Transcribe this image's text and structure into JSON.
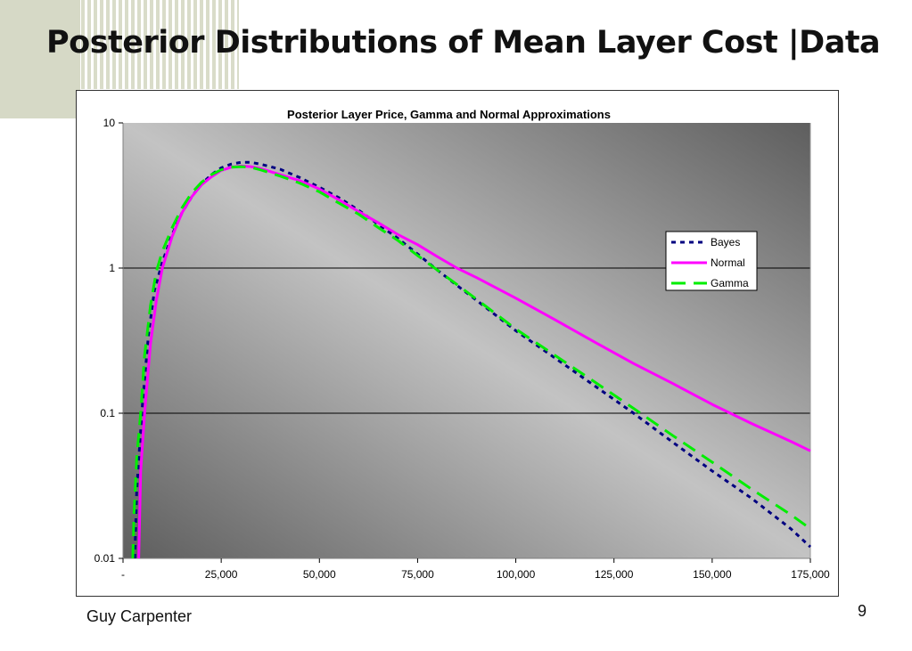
{
  "slide": {
    "title": "Posterior Distributions of Mean Layer Cost |Data",
    "footer": "Guy Carpenter",
    "page_number": "9"
  },
  "chart_data": {
    "type": "line",
    "title": "Posterior Layer Price, Gamma and Normal Approximations",
    "xlabel": "",
    "ylabel": "",
    "x_scale": "linear",
    "y_scale": "log",
    "xlim": [
      0,
      175000
    ],
    "ylim": [
      0.01,
      10
    ],
    "x_ticks": [
      0,
      25000,
      50000,
      75000,
      100000,
      125000,
      150000,
      175000
    ],
    "x_tick_labels": [
      "-",
      "25,000",
      "50,000",
      "75,000",
      "100,000",
      "125,000",
      "150,000",
      "175,000"
    ],
    "y_ticks": [
      0.01,
      0.1,
      1,
      10
    ],
    "y_tick_labels": [
      "0.01",
      "0.1",
      "1",
      "10"
    ],
    "grid": "horizontal major",
    "legend_position": "right",
    "series": [
      {
        "name": "Bayes",
        "color": "#000080",
        "style": "dotted",
        "points": [
          [
            3000,
            0.01
          ],
          [
            3500,
            0.03
          ],
          [
            5000,
            0.12
          ],
          [
            6500,
            0.35
          ],
          [
            8000,
            0.7
          ],
          [
            10000,
            1.1
          ],
          [
            12500,
            1.7
          ],
          [
            15000,
            2.4
          ],
          [
            17500,
            3.1
          ],
          [
            20000,
            3.8
          ],
          [
            22500,
            4.4
          ],
          [
            25000,
            4.9
          ],
          [
            27500,
            5.2
          ],
          [
            30000,
            5.35
          ],
          [
            32500,
            5.35
          ],
          [
            35000,
            5.2
          ],
          [
            40000,
            4.8
          ],
          [
            45000,
            4.2
          ],
          [
            50000,
            3.6
          ],
          [
            55000,
            3.05
          ],
          [
            60000,
            2.5
          ],
          [
            65000,
            2.0
          ],
          [
            70000,
            1.6
          ],
          [
            75000,
            1.25
          ],
          [
            80000,
            0.97
          ],
          [
            85000,
            0.76
          ],
          [
            90000,
            0.6
          ],
          [
            100000,
            0.37
          ],
          [
            110000,
            0.24
          ],
          [
            120000,
            0.155
          ],
          [
            130000,
            0.1
          ],
          [
            140000,
            0.063
          ],
          [
            150000,
            0.04
          ],
          [
            160000,
            0.026
          ],
          [
            170000,
            0.016
          ],
          [
            175000,
            0.012
          ]
        ]
      },
      {
        "name": "Normal",
        "color": "#ff00ff",
        "style": "solid",
        "points": [
          [
            4000,
            0.01
          ],
          [
            4500,
            0.04
          ],
          [
            5500,
            0.1
          ],
          [
            7000,
            0.3
          ],
          [
            8500,
            0.6
          ],
          [
            10000,
            1.0
          ],
          [
            12500,
            1.65
          ],
          [
            15000,
            2.4
          ],
          [
            17500,
            3.1
          ],
          [
            20000,
            3.75
          ],
          [
            22500,
            4.25
          ],
          [
            25000,
            4.7
          ],
          [
            27500,
            4.95
          ],
          [
            30000,
            5.05
          ],
          [
            32500,
            5.0
          ],
          [
            35000,
            4.85
          ],
          [
            40000,
            4.4
          ],
          [
            45000,
            4.0
          ],
          [
            50000,
            3.5
          ],
          [
            55000,
            2.95
          ],
          [
            60000,
            2.45
          ],
          [
            65000,
            2.05
          ],
          [
            70000,
            1.7
          ],
          [
            75000,
            1.45
          ],
          [
            80000,
            1.2
          ],
          [
            85000,
            1.0
          ],
          [
            90000,
            0.86
          ],
          [
            100000,
            0.62
          ],
          [
            110000,
            0.44
          ],
          [
            120000,
            0.31
          ],
          [
            130000,
            0.22
          ],
          [
            140000,
            0.16
          ],
          [
            150000,
            0.115
          ],
          [
            160000,
            0.085
          ],
          [
            170000,
            0.064
          ],
          [
            175000,
            0.055
          ]
        ]
      },
      {
        "name": "Gamma",
        "color": "#00ee00",
        "style": "dashed",
        "points": [
          [
            2500,
            0.01
          ],
          [
            2800,
            0.02
          ],
          [
            3500,
            0.05
          ],
          [
            4500,
            0.1
          ],
          [
            5500,
            0.25
          ],
          [
            7000,
            0.55
          ],
          [
            8500,
            0.95
          ],
          [
            10000,
            1.3
          ],
          [
            12500,
            1.9
          ],
          [
            15000,
            2.6
          ],
          [
            17500,
            3.3
          ],
          [
            20000,
            3.9
          ],
          [
            22500,
            4.4
          ],
          [
            25000,
            4.75
          ],
          [
            27500,
            4.95
          ],
          [
            30000,
            5.0
          ],
          [
            32500,
            4.95
          ],
          [
            35000,
            4.75
          ],
          [
            40000,
            4.3
          ],
          [
            45000,
            3.85
          ],
          [
            50000,
            3.35
          ],
          [
            55000,
            2.8
          ],
          [
            60000,
            2.35
          ],
          [
            65000,
            1.9
          ],
          [
            70000,
            1.55
          ],
          [
            75000,
            1.22
          ],
          [
            80000,
            0.97
          ],
          [
            85000,
            0.77
          ],
          [
            90000,
            0.61
          ],
          [
            100000,
            0.38
          ],
          [
            110000,
            0.25
          ],
          [
            120000,
            0.165
          ],
          [
            130000,
            0.108
          ],
          [
            140000,
            0.07
          ],
          [
            150000,
            0.046
          ],
          [
            160000,
            0.03
          ],
          [
            170000,
            0.02
          ],
          [
            175000,
            0.016
          ]
        ]
      }
    ]
  }
}
